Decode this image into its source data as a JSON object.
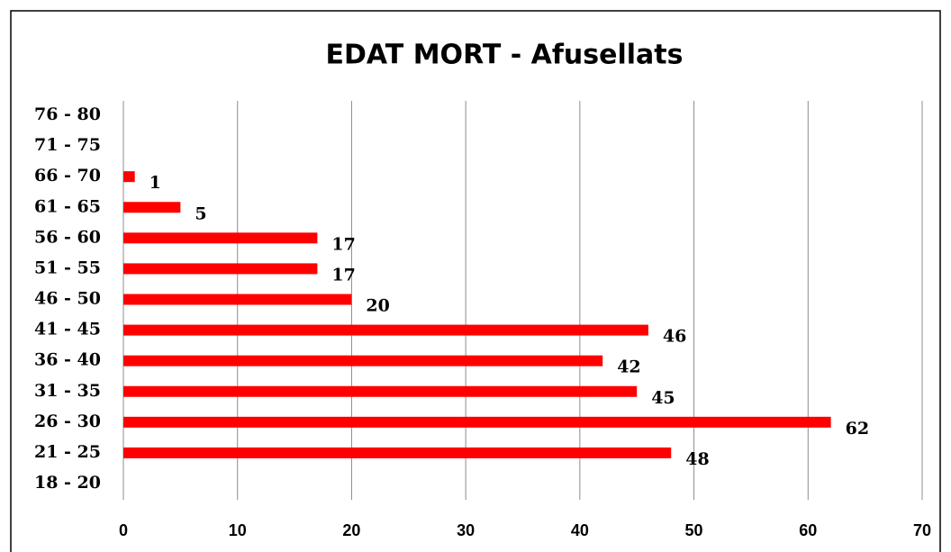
{
  "chart_data": {
    "type": "bar",
    "orientation": "horizontal",
    "title": "EDAT MORT - Afusellats",
    "categories": [
      "18 - 20",
      "21 - 25",
      "26 - 30",
      "31 - 35",
      "36 - 40",
      "41 - 45",
      "46 - 50",
      "51 - 55",
      "56 - 60",
      "61 - 65",
      "66 - 70",
      "71 - 75",
      "76 - 80"
    ],
    "values": [
      null,
      48,
      62,
      45,
      42,
      46,
      20,
      17,
      17,
      5,
      1,
      null,
      null
    ],
    "color": "#ff0000",
    "xlim": [
      0,
      70
    ],
    "xticks": [
      0,
      10,
      20,
      30,
      40,
      50,
      60,
      70
    ],
    "grid": true
  }
}
